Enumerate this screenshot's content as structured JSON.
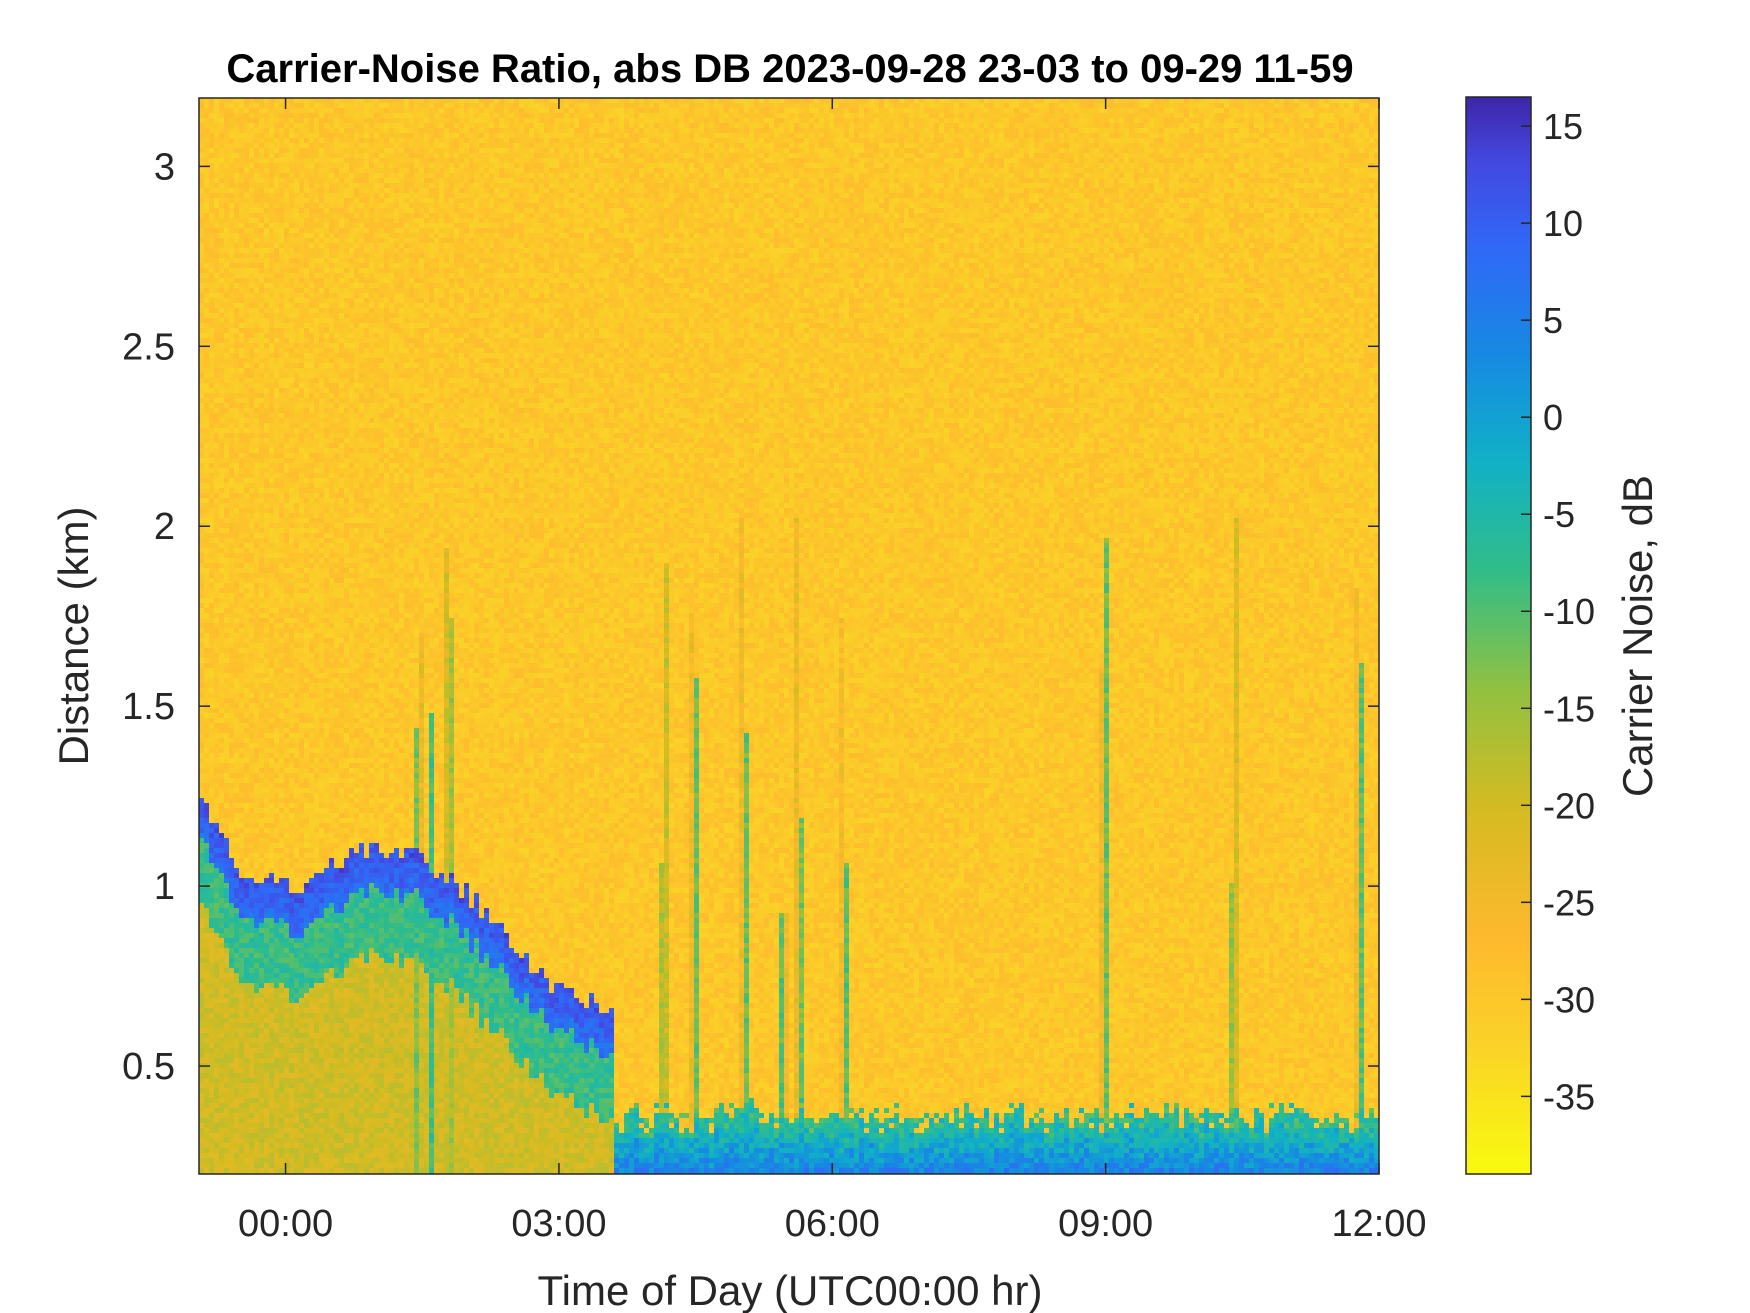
{
  "chart_data": {
    "type": "heatmap",
    "title": "Carrier-Noise Ratio, abs DB 2023-09-28 23-03 to 09-29 11-59",
    "xlabel": "Time of Day (UTC00:00 hr)",
    "ylabel": "Distance (km)",
    "colorbar_label": "Carrier Noise, dB",
    "x_tick_labels": [
      "00:00",
      "03:00",
      "06:00",
      "09:00",
      "12:00"
    ],
    "x_tick_hours": [
      0,
      3,
      6,
      9,
      12
    ],
    "xlim_hours": [
      -0.95,
      12.0
    ],
    "y_ticks": [
      0.5,
      1,
      1.5,
      2,
      2.5,
      3
    ],
    "y_tick_labels": [
      "0.5",
      "1",
      "1.5",
      "2",
      "2.5",
      "3"
    ],
    "ylim_km": [
      0.2,
      3.19
    ],
    "clim_db": [
      -39,
      16.5
    ],
    "colorbar_ticks": [
      15,
      10,
      5,
      0,
      -5,
      -10,
      -15,
      -20,
      -25,
      -30,
      -35
    ],
    "colorbar_tick_labels": [
      "15",
      "10",
      "5",
      "0",
      "-5",
      "-10",
      "-15",
      "-20",
      "-25",
      "-30",
      "-35"
    ],
    "colormap": "parula-reversed",
    "background_level_db": -30,
    "features": [
      {
        "name": "boundary layer top",
        "start_hours": -0.95,
        "end_hours": 3.6,
        "top_km": [
          1.25,
          1.0,
          1.0,
          1.1,
          1.1,
          1.0,
          0.85,
          0.7,
          0.65
        ],
        "peak_db": 12
      },
      {
        "name": "surface layer",
        "start_hours": 3.6,
        "end_hours": 12.0,
        "top_km": 0.3,
        "peak_db": 5
      },
      {
        "name": "vertical streaks",
        "hours": [
          1.45,
          1.6,
          1.8,
          4.5,
          4.15,
          5.05,
          5.45,
          5.65,
          6.15,
          9.0,
          10.4,
          11.8
        ],
        "peak_db": -8
      }
    ]
  }
}
